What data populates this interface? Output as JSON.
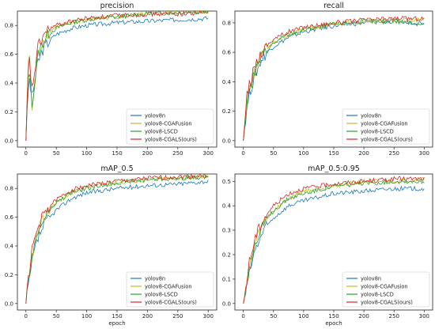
{
  "chart_data": [
    {
      "type": "line",
      "title": "precision",
      "xlabel": "",
      "ylabel": "",
      "xlim": [
        0,
        300
      ],
      "ylim": [
        0,
        0.9
      ],
      "x_ticks": [
        0,
        50,
        100,
        150,
        200,
        250,
        300
      ],
      "y_ticks": [
        0.0,
        0.2,
        0.4,
        0.6,
        0.8
      ],
      "legend": "bottom-right",
      "grid": false,
      "x": [
        0,
        5,
        10,
        20,
        30,
        40,
        50,
        75,
        100,
        150,
        200,
        250,
        300
      ],
      "series": [
        {
          "name": "yolov8n",
          "color": "#1f77b4",
          "values": [
            0.0,
            0.45,
            0.3,
            0.55,
            0.65,
            0.7,
            0.74,
            0.78,
            0.8,
            0.82,
            0.83,
            0.84,
            0.85
          ]
        },
        {
          "name": "yolov8-CGAFusion",
          "color": "#bcbd22",
          "values": [
            0.0,
            0.7,
            0.2,
            0.6,
            0.72,
            0.76,
            0.79,
            0.82,
            0.84,
            0.86,
            0.88,
            0.89,
            0.9
          ]
        },
        {
          "name": "yolov8-LSCD",
          "color": "#2ca02c",
          "values": [
            0.0,
            0.55,
            0.25,
            0.6,
            0.7,
            0.75,
            0.78,
            0.82,
            0.84,
            0.86,
            0.88,
            0.89,
            0.9
          ]
        },
        {
          "name": "yolov8-CGALS(ours)",
          "color": "#d62728",
          "values": [
            0.0,
            0.6,
            0.35,
            0.65,
            0.74,
            0.78,
            0.8,
            0.83,
            0.85,
            0.87,
            0.88,
            0.88,
            0.89
          ]
        }
      ]
    },
    {
      "type": "line",
      "title": "recall",
      "xlabel": "",
      "ylabel": "",
      "xlim": [
        0,
        300
      ],
      "ylim": [
        0,
        0.88
      ],
      "x_ticks": [
        0,
        50,
        100,
        150,
        200,
        250,
        300
      ],
      "y_ticks": [
        0.0,
        0.2,
        0.4,
        0.6,
        0.8
      ],
      "legend": "bottom-right",
      "grid": false,
      "x": [
        0,
        5,
        10,
        20,
        30,
        40,
        50,
        75,
        100,
        150,
        200,
        250,
        300
      ],
      "series": [
        {
          "name": "yolov8n",
          "color": "#1f77b4",
          "values": [
            0.0,
            0.2,
            0.32,
            0.45,
            0.55,
            0.6,
            0.64,
            0.7,
            0.74,
            0.78,
            0.8,
            0.81,
            0.8
          ]
        },
        {
          "name": "yolov8-CGAFusion",
          "color": "#bcbd22",
          "values": [
            0.0,
            0.25,
            0.36,
            0.5,
            0.58,
            0.63,
            0.67,
            0.72,
            0.76,
            0.79,
            0.81,
            0.82,
            0.82
          ]
        },
        {
          "name": "yolov8-LSCD",
          "color": "#2ca02c",
          "values": [
            0.0,
            0.22,
            0.34,
            0.47,
            0.57,
            0.62,
            0.66,
            0.72,
            0.75,
            0.79,
            0.81,
            0.81,
            0.79
          ]
        },
        {
          "name": "yolov8-CGALS(ours)",
          "color": "#d62728",
          "values": [
            0.0,
            0.28,
            0.38,
            0.52,
            0.6,
            0.65,
            0.69,
            0.74,
            0.77,
            0.8,
            0.82,
            0.83,
            0.83
          ]
        }
      ]
    },
    {
      "type": "line",
      "title": "mAP_0.5",
      "xlabel": "epoch",
      "ylabel": "",
      "xlim": [
        0,
        300
      ],
      "ylim": [
        0,
        0.9
      ],
      "x_ticks": [
        0,
        50,
        100,
        150,
        200,
        250,
        300
      ],
      "y_ticks": [
        0.0,
        0.2,
        0.4,
        0.6,
        0.8
      ],
      "legend": "bottom-right",
      "grid": false,
      "x": [
        0,
        5,
        10,
        20,
        30,
        40,
        50,
        75,
        100,
        150,
        200,
        250,
        300
      ],
      "series": [
        {
          "name": "yolov8n",
          "color": "#1f77b4",
          "values": [
            0.0,
            0.15,
            0.3,
            0.45,
            0.55,
            0.6,
            0.65,
            0.73,
            0.77,
            0.8,
            0.82,
            0.83,
            0.85
          ]
        },
        {
          "name": "yolov8-CGAFusion",
          "color": "#bcbd22",
          "values": [
            0.0,
            0.18,
            0.34,
            0.5,
            0.6,
            0.66,
            0.7,
            0.77,
            0.81,
            0.84,
            0.86,
            0.87,
            0.88
          ]
        },
        {
          "name": "yolov8-LSCD",
          "color": "#2ca02c",
          "values": [
            0.0,
            0.17,
            0.33,
            0.49,
            0.59,
            0.65,
            0.7,
            0.77,
            0.8,
            0.84,
            0.86,
            0.87,
            0.88
          ]
        },
        {
          "name": "yolov8-CGALS(ours)",
          "color": "#d62728",
          "values": [
            0.0,
            0.2,
            0.37,
            0.53,
            0.62,
            0.68,
            0.72,
            0.79,
            0.82,
            0.85,
            0.87,
            0.88,
            0.89
          ]
        }
      ]
    },
    {
      "type": "line",
      "title": "mAP_0.5:0.95",
      "xlabel": "epoch",
      "ylabel": "",
      "xlim": [
        0,
        300
      ],
      "ylim": [
        0,
        0.53
      ],
      "x_ticks": [
        0,
        50,
        100,
        150,
        200,
        250,
        300
      ],
      "y_ticks": [
        0.0,
        0.1,
        0.2,
        0.3,
        0.4,
        0.5
      ],
      "legend": "bottom-right",
      "grid": false,
      "x": [
        0,
        5,
        10,
        20,
        30,
        40,
        50,
        75,
        100,
        150,
        200,
        250,
        300
      ],
      "series": [
        {
          "name": "yolov8n",
          "color": "#1f77b4",
          "values": [
            0.0,
            0.06,
            0.13,
            0.22,
            0.28,
            0.32,
            0.35,
            0.4,
            0.42,
            0.45,
            0.46,
            0.47,
            0.47
          ]
        },
        {
          "name": "yolov8-CGAFusion",
          "color": "#bcbd22",
          "values": [
            0.0,
            0.07,
            0.15,
            0.25,
            0.31,
            0.35,
            0.38,
            0.43,
            0.46,
            0.48,
            0.5,
            0.5,
            0.51
          ]
        },
        {
          "name": "yolov8-LSCD",
          "color": "#2ca02c",
          "values": [
            0.0,
            0.07,
            0.15,
            0.24,
            0.3,
            0.35,
            0.38,
            0.43,
            0.45,
            0.48,
            0.49,
            0.5,
            0.5
          ]
        },
        {
          "name": "yolov8-CGALS(ours)",
          "color": "#d62728",
          "values": [
            0.0,
            0.08,
            0.17,
            0.27,
            0.33,
            0.37,
            0.4,
            0.45,
            0.47,
            0.49,
            0.5,
            0.51,
            0.51
          ]
        }
      ]
    }
  ]
}
